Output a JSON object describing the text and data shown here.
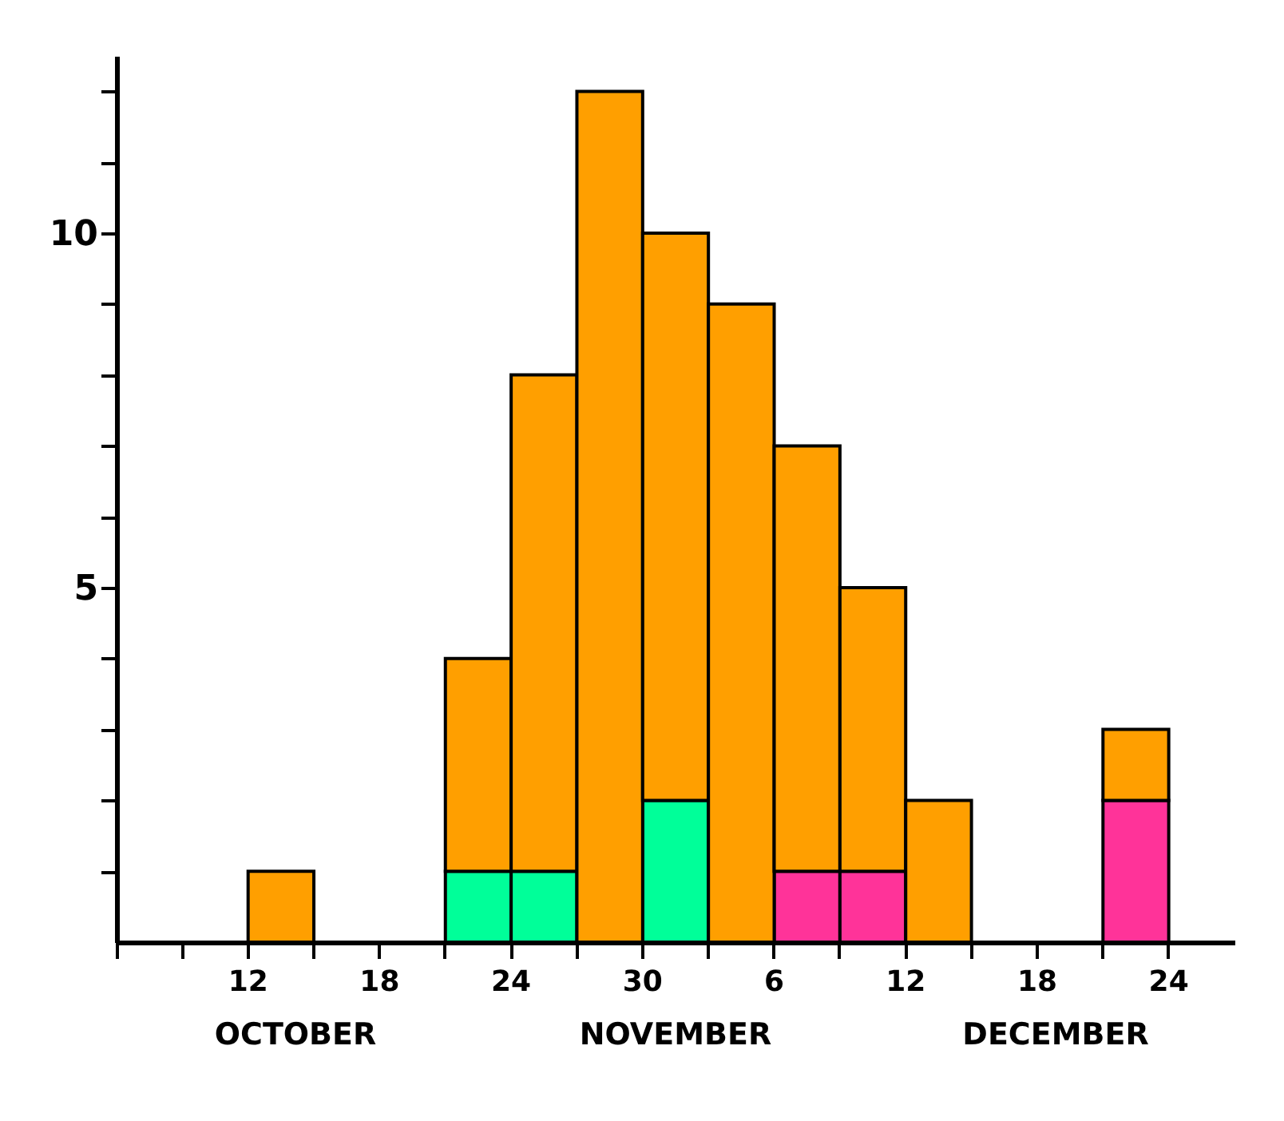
{
  "chart_data": {
    "type": "bar",
    "stacked": true,
    "legend": false,
    "grid": false,
    "categories": [
      null,
      "12",
      null,
      "18",
      null,
      "24",
      null,
      "30",
      null,
      "6",
      null,
      "12",
      null,
      "18",
      null,
      "24",
      null
    ],
    "series": [
      {
        "color": "#00ff99",
        "values": [
          null,
          null,
          null,
          null,
          null,
          1,
          1,
          null,
          2,
          null,
          null,
          null,
          null,
          null,
          null,
          null,
          null
        ]
      },
      {
        "color": "#ff3399",
        "values": [
          null,
          null,
          null,
          null,
          null,
          null,
          null,
          null,
          null,
          null,
          1,
          1,
          null,
          null,
          null,
          2,
          null
        ]
      },
      {
        "color": "#ff9f00",
        "values": [
          null,
          null,
          1,
          null,
          null,
          3,
          7,
          12,
          8,
          9,
          6,
          4,
          2,
          null,
          null,
          1,
          null
        ]
      }
    ],
    "ylim": [
      0,
      12.5
    ],
    "yticks": [
      {
        "value": 1,
        "label": null
      },
      {
        "value": 2,
        "label": null
      },
      {
        "value": 3,
        "label": null
      },
      {
        "value": 4,
        "label": null
      },
      5,
      {
        "value": 6,
        "label": null
      },
      {
        "value": 7,
        "label": null
      },
      {
        "value": 8,
        "label": null
      },
      {
        "value": 9,
        "label": null
      },
      10,
      {
        "value": 11,
        "label": null
      },
      {
        "value": 12,
        "label": null
      }
    ],
    "annotations": [
      "OCTOBER",
      "NOVEMBER",
      "DECEMBER"
    ]
  }
}
